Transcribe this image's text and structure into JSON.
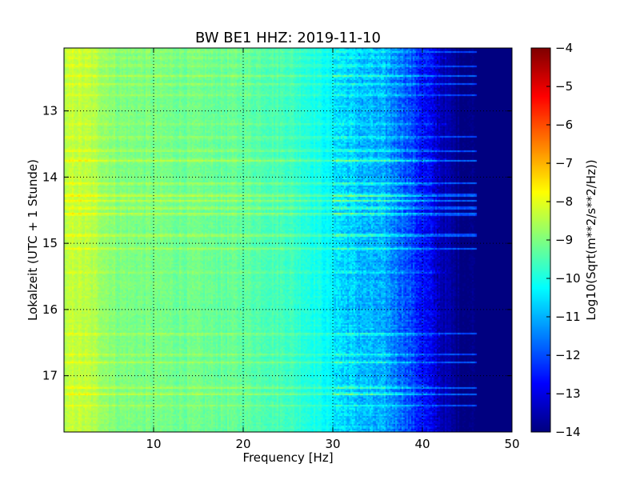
{
  "chart_data": {
    "type": "heatmap",
    "title": "BW BE1 HHZ: 2019-11-10",
    "xlabel": "Frequency [Hz]",
    "ylabel": "Lokalzeit (UTC + 1 Stunde)",
    "xlim": [
      0,
      50
    ],
    "ylim": [
      12.05,
      17.85
    ],
    "y_inverted": true,
    "x_ticks": [
      10,
      20,
      30,
      40,
      50
    ],
    "x_tick_labels": [
      "10",
      "20",
      "30",
      "40",
      "50"
    ],
    "y_ticks": [
      13,
      14,
      15,
      16,
      17
    ],
    "y_tick_labels": [
      "13",
      "14",
      "15",
      "16",
      "17"
    ],
    "grid": true,
    "colormap": "jet",
    "colorbar": {
      "label": "Log10(Sqrt(m**2/s**2/Hz))",
      "min": -14,
      "max": -4,
      "ticks": [
        -14,
        -13,
        -12,
        -11,
        -10,
        -9,
        -8,
        -7,
        -6,
        -5,
        -4
      ],
      "tick_labels": [
        "−14",
        "−13",
        "−12",
        "−11",
        "−10",
        "−9",
        "−8",
        "−7",
        "−6",
        "−5",
        "−4"
      ]
    },
    "frequency_profile": {
      "frequency_hz": [
        0,
        1,
        3,
        6,
        10,
        15,
        20,
        25,
        28,
        31,
        33,
        36,
        38,
        40,
        42,
        44,
        46,
        50
      ],
      "log10_amplitude": [
        -8.6,
        -8.3,
        -8.5,
        -9.0,
        -9.1,
        -9.2,
        -9.3,
        -9.6,
        -10.0,
        -10.6,
        -10.9,
        -11.2,
        -11.8,
        -12.6,
        -13.4,
        -13.9,
        -14.0,
        -14.0
      ]
    },
    "elevated_time_bands": [
      {
        "time": 12.1,
        "level": 0.8
      },
      {
        "time": 12.2,
        "level": 0.7
      },
      {
        "time": 12.32,
        "level": 0.8
      },
      {
        "time": 12.47,
        "level": 1.0
      },
      {
        "time": 12.6,
        "level": 0.8
      },
      {
        "time": 12.76,
        "level": 0.6
      },
      {
        "time": 13.2,
        "level": 0.6
      },
      {
        "time": 13.4,
        "level": 0.8
      },
      {
        "time": 13.6,
        "level": 1.1
      },
      {
        "time": 13.75,
        "level": 1.4
      },
      {
        "time": 14.1,
        "level": 1.0
      },
      {
        "time": 14.28,
        "level": 1.6
      },
      {
        "time": 14.36,
        "level": 1.3
      },
      {
        "time": 14.47,
        "level": 1.2
      },
      {
        "time": 14.56,
        "level": 1.4
      },
      {
        "time": 14.88,
        "level": 1.2
      },
      {
        "time": 15.08,
        "level": 1.0
      },
      {
        "time": 15.44,
        "level": 0.6
      },
      {
        "time": 16.37,
        "level": 0.9
      },
      {
        "time": 16.68,
        "level": 0.8
      },
      {
        "time": 16.8,
        "level": 0.9
      },
      {
        "time": 17.18,
        "level": 1.3
      },
      {
        "time": 17.28,
        "level": 1.1
      },
      {
        "time": 17.45,
        "level": 0.6
      }
    ]
  }
}
